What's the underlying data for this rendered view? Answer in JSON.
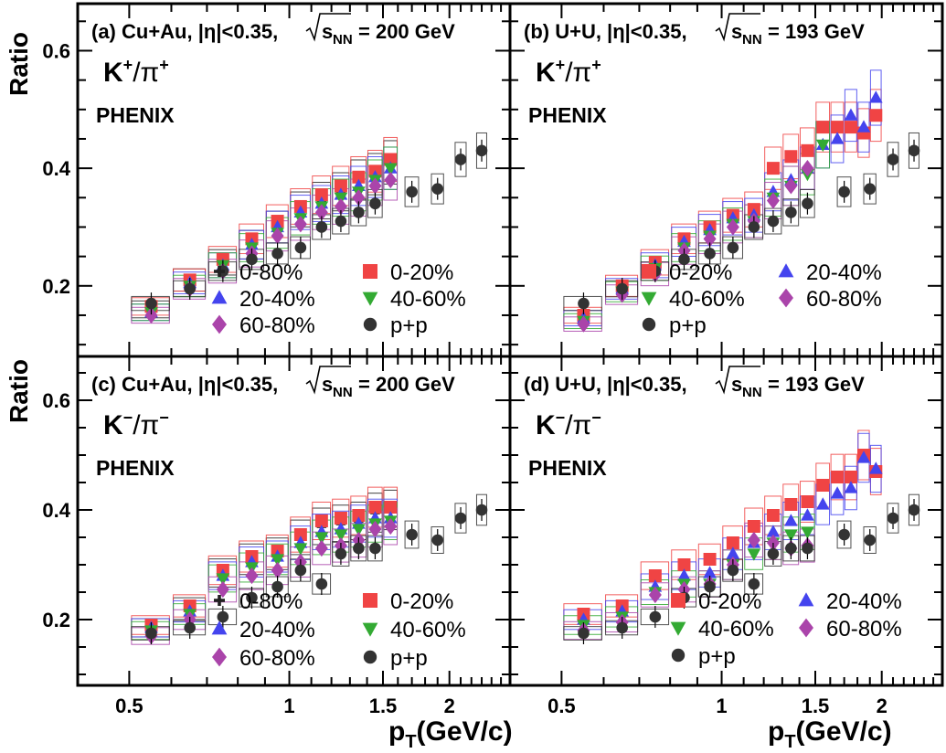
{
  "axes": {
    "ylabel": "Ratio",
    "xlabel_main": "p",
    "xlabel_sub": "T",
    "xlabel_unit": "(GeV/c)",
    "x_ticks": [
      "0.5",
      "1",
      "1.5",
      "2"
    ],
    "y_ticks": [
      "0.2",
      "0.4",
      "0.6"
    ]
  },
  "experiment_label": "PHENIX",
  "chart_data": [
    {
      "type": "scatter",
      "panel": "(a)",
      "title": "(a) Cu+Au, |η|<0.35,",
      "energy_label": "= 200 GeV",
      "sqrt_label": "s",
      "sqrt_sub": "NN",
      "ratio_label_main": "K",
      "ratio_label_den": "/π",
      "charge_sign": "+",
      "xscale": "log",
      "xlim": [
        0.4,
        2.6
      ],
      "ylim": [
        0.08,
        0.68
      ],
      "legend": [
        {
          "name": "0-80%",
          "marker": "cross",
          "color": "#222222"
        },
        {
          "name": "0-20%",
          "marker": "square",
          "color": "#f04444"
        },
        {
          "name": "20-40%",
          "marker": "triangle-up",
          "color": "#4444ee"
        },
        {
          "name": "40-60%",
          "marker": "triangle-down",
          "color": "#33aa33"
        },
        {
          "name": "60-80%",
          "marker": "diamond",
          "color": "#aa44aa"
        },
        {
          "name": "p+p",
          "marker": "circle",
          "color": "#333333"
        }
      ],
      "x": [
        0.55,
        0.65,
        0.75,
        0.85,
        0.95,
        1.05,
        1.15,
        1.25,
        1.35,
        1.45,
        1.55
      ],
      "series": [
        {
          "name": "0-80%",
          "values": [
            0.16,
            0.21,
            0.24,
            0.27,
            0.3,
            0.33,
            0.345,
            0.36,
            0.38,
            0.39,
            0.41
          ]
        },
        {
          "name": "0-20%",
          "values": [
            0.165,
            0.21,
            0.245,
            0.28,
            0.31,
            0.335,
            0.355,
            0.37,
            0.385,
            0.395,
            0.415
          ]
        },
        {
          "name": "20-40%",
          "values": [
            0.155,
            0.205,
            0.235,
            0.27,
            0.3,
            0.325,
            0.34,
            0.355,
            0.37,
            0.385,
            0.4
          ]
        },
        {
          "name": "40-60%",
          "values": [
            0.155,
            0.2,
            0.235,
            0.265,
            0.29,
            0.315,
            0.335,
            0.35,
            0.36,
            0.38,
            0.4
          ]
        },
        {
          "name": "60-80%",
          "values": [
            0.15,
            0.195,
            0.225,
            0.255,
            0.285,
            0.305,
            0.325,
            0.335,
            0.35,
            0.37,
            0.38
          ]
        },
        {
          "name": "p+p",
          "x": [
            0.55,
            0.65,
            0.75,
            0.85,
            0.95,
            1.05,
            1.15,
            1.25,
            1.35,
            1.45,
            1.7,
            1.9,
            2.1,
            2.3
          ],
          "values": [
            0.17,
            0.195,
            0.225,
            0.245,
            0.255,
            0.265,
            0.3,
            0.31,
            0.325,
            0.34,
            0.36,
            0.365,
            0.415,
            0.43
          ]
        }
      ]
    },
    {
      "type": "scatter",
      "panel": "(b)",
      "title": "(b) U+U, |η|<0.35,",
      "energy_label": "= 193 GeV",
      "sqrt_label": "s",
      "sqrt_sub": "NN",
      "ratio_label_main": "K",
      "ratio_label_den": "/π",
      "charge_sign": "+",
      "xscale": "log",
      "xlim": [
        0.4,
        2.6
      ],
      "ylim": [
        0.08,
        0.68
      ],
      "legend": [
        {
          "name": "0-20%",
          "marker": "square",
          "color": "#f04444"
        },
        {
          "name": "20-40%",
          "marker": "triangle-up",
          "color": "#4444ee"
        },
        {
          "name": "40-60%",
          "marker": "triangle-down",
          "color": "#33aa33"
        },
        {
          "name": "60-80%",
          "marker": "diamond",
          "color": "#aa44aa"
        },
        {
          "name": "p+p",
          "marker": "circle",
          "color": "#333333"
        }
      ],
      "x": [
        0.55,
        0.65,
        0.75,
        0.85,
        0.95,
        1.05,
        1.15,
        1.25,
        1.35,
        1.45,
        1.55,
        1.65,
        1.75,
        1.85,
        1.95
      ],
      "series": [
        {
          "name": "0-20%",
          "values": [
            0.15,
            0.2,
            0.24,
            0.28,
            0.3,
            0.32,
            0.33,
            0.4,
            0.42,
            0.43,
            0.47,
            0.47,
            0.47,
            0.46,
            0.49
          ]
        },
        {
          "name": "20-40%",
          "values": [
            0.145,
            0.195,
            0.235,
            0.275,
            0.295,
            0.315,
            0.32,
            0.36,
            0.38,
            0.4,
            0.44,
            0.45,
            0.49,
            0.47,
            0.52
          ]
        },
        {
          "name": "40-60%",
          "values": [
            0.14,
            0.19,
            0.23,
            0.265,
            0.285,
            0.305,
            0.31,
            0.35,
            0.37,
            0.39,
            0.44,
            null,
            null,
            null,
            null
          ]
        },
        {
          "name": "60-80%",
          "values": [
            0.135,
            0.185,
            0.22,
            0.26,
            0.28,
            0.3,
            0.31,
            0.345,
            0.37,
            0.4,
            null,
            null,
            null,
            null,
            null
          ]
        },
        {
          "name": "p+p",
          "x": [
            0.55,
            0.65,
            0.75,
            0.85,
            0.95,
            1.05,
            1.15,
            1.25,
            1.35,
            1.45,
            1.7,
            1.9,
            2.1,
            2.3
          ],
          "values": [
            0.17,
            0.195,
            0.225,
            0.245,
            0.255,
            0.265,
            0.3,
            0.31,
            0.325,
            0.34,
            0.36,
            0.365,
            0.415,
            0.43
          ]
        }
      ]
    },
    {
      "type": "scatter",
      "panel": "(c)",
      "title": "(c) Cu+Au, |η|<0.35,",
      "energy_label": "= 200 GeV",
      "sqrt_label": "s",
      "sqrt_sub": "NN",
      "ratio_label_main": "K",
      "ratio_label_den": "/π",
      "charge_sign": "−",
      "xscale": "log",
      "xlim": [
        0.4,
        2.6
      ],
      "ylim": [
        0.08,
        0.68
      ],
      "legend": [
        {
          "name": "0-80%",
          "marker": "cross",
          "color": "#222222"
        },
        {
          "name": "0-20%",
          "marker": "square",
          "color": "#f04444"
        },
        {
          "name": "20-40%",
          "marker": "triangle-up",
          "color": "#4444ee"
        },
        {
          "name": "40-60%",
          "marker": "triangle-down",
          "color": "#33aa33"
        },
        {
          "name": "60-80%",
          "marker": "diamond",
          "color": "#aa44aa"
        },
        {
          "name": "p+p",
          "marker": "circle",
          "color": "#333333"
        }
      ],
      "x": [
        0.55,
        0.65,
        0.75,
        0.85,
        0.95,
        1.05,
        1.15,
        1.25,
        1.35,
        1.45,
        1.55
      ],
      "series": [
        {
          "name": "0-80%",
          "values": [
            0.185,
            0.22,
            0.285,
            0.31,
            0.32,
            0.35,
            0.37,
            0.375,
            0.38,
            0.395,
            0.4
          ]
        },
        {
          "name": "0-20%",
          "values": [
            0.19,
            0.225,
            0.29,
            0.315,
            0.325,
            0.355,
            0.38,
            0.385,
            0.39,
            0.405,
            0.405
          ]
        },
        {
          "name": "20-40%",
          "values": [
            0.185,
            0.215,
            0.28,
            0.305,
            0.315,
            0.34,
            0.36,
            0.365,
            0.375,
            0.385,
            0.385
          ]
        },
        {
          "name": "40-60%",
          "values": [
            0.18,
            0.21,
            0.275,
            0.295,
            0.31,
            0.33,
            0.35,
            0.355,
            0.365,
            0.375,
            0.38
          ]
        },
        {
          "name": "60-80%",
          "values": [
            0.17,
            0.2,
            0.255,
            0.28,
            0.29,
            0.305,
            0.33,
            0.335,
            0.345,
            0.365,
            0.37
          ]
        },
        {
          "name": "p+p",
          "x": [
            0.55,
            0.65,
            0.75,
            0.85,
            0.95,
            1.05,
            1.15,
            1.25,
            1.35,
            1.45,
            1.7,
            1.9,
            2.1,
            2.3
          ],
          "values": [
            0.175,
            0.185,
            0.205,
            0.24,
            0.26,
            0.29,
            0.265,
            0.32,
            0.33,
            0.33,
            0.355,
            0.345,
            0.385,
            0.4
          ]
        }
      ]
    },
    {
      "type": "scatter",
      "panel": "(d)",
      "title": "(d) U+U, |η|<0.35,",
      "energy_label": "= 193 GeV",
      "sqrt_label": "s",
      "sqrt_sub": "NN",
      "ratio_label_main": "K",
      "ratio_label_den": "/π",
      "charge_sign": "−",
      "xscale": "log",
      "xlim": [
        0.4,
        2.6
      ],
      "ylim": [
        0.08,
        0.68
      ],
      "legend": [
        {
          "name": "0-20%",
          "marker": "square",
          "color": "#f04444"
        },
        {
          "name": "20-40%",
          "marker": "triangle-up",
          "color": "#4444ee"
        },
        {
          "name": "40-60%",
          "marker": "triangle-down",
          "color": "#33aa33"
        },
        {
          "name": "60-80%",
          "marker": "diamond",
          "color": "#aa44aa"
        },
        {
          "name": "p+p",
          "marker": "circle",
          "color": "#333333"
        }
      ],
      "x": [
        0.55,
        0.65,
        0.75,
        0.85,
        0.95,
        1.05,
        1.15,
        1.25,
        1.35,
        1.45,
        1.55,
        1.65,
        1.75,
        1.85,
        1.95
      ],
      "series": [
        {
          "name": "0-20%",
          "values": [
            0.21,
            0.225,
            0.28,
            0.3,
            0.31,
            0.34,
            0.37,
            0.39,
            0.41,
            0.415,
            0.445,
            0.46,
            0.46,
            0.5,
            0.47
          ]
        },
        {
          "name": "20-40%",
          "values": [
            0.2,
            0.215,
            0.26,
            0.28,
            0.285,
            0.32,
            0.34,
            0.36,
            0.38,
            0.39,
            0.41,
            0.43,
            0.44,
            0.495,
            0.475
          ]
        },
        {
          "name": "40-60%",
          "values": [
            0.19,
            0.205,
            0.25,
            0.265,
            0.265,
            0.3,
            0.32,
            0.34,
            0.355,
            0.36,
            null,
            null,
            null,
            null,
            null
          ]
        },
        {
          "name": "60-80%",
          "values": [
            0.18,
            0.195,
            0.245,
            0.255,
            0.265,
            0.3,
            0.345,
            0.34,
            0.33,
            0.335,
            null,
            null,
            null,
            null,
            null
          ]
        },
        {
          "name": "p+p",
          "x": [
            0.55,
            0.65,
            0.75,
            0.85,
            0.95,
            1.05,
            1.15,
            1.25,
            1.35,
            1.45,
            1.7,
            1.9,
            2.1,
            2.3
          ],
          "values": [
            0.175,
            0.185,
            0.205,
            0.24,
            0.26,
            0.29,
            0.265,
            0.32,
            0.33,
            0.33,
            0.355,
            0.345,
            0.385,
            0.4
          ]
        }
      ]
    }
  ]
}
